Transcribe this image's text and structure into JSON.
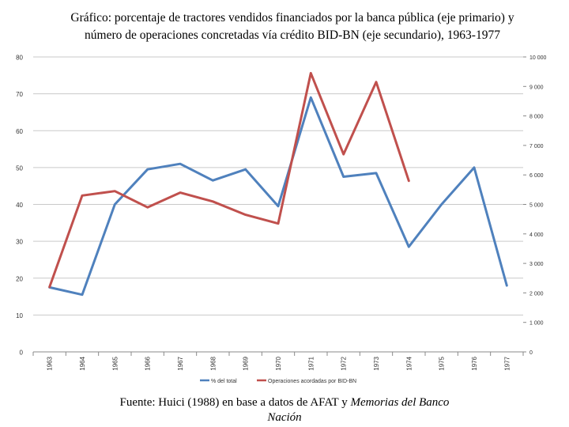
{
  "title_line1": "Gráfico: porcentaje de tractores vendidos financiados por la banca pública (eje primario) y",
  "title_line2": "número de operaciones concretadas vía crédito BID-BN (eje secundario), 1963-1977",
  "source": {
    "prefix": "Fuente: Huici (1988) en base a datos de AFAT y ",
    "italic_part1": "Memorias del Banco",
    "italic_part2": "Nación"
  },
  "chart_data": {
    "type": "line",
    "categories": [
      "1963",
      "1964",
      "1965",
      "1966",
      "1967",
      "1968",
      "1969",
      "1970",
      "1971",
      "1972",
      "1973",
      "1974",
      "1975",
      "1976",
      "1977"
    ],
    "y_left": {
      "min": 0,
      "max": 80,
      "ticks": [
        "0",
        "10",
        "20",
        "30",
        "40",
        "50",
        "60",
        "70",
        "80"
      ]
    },
    "y_right": {
      "min": 0,
      "max": 10000,
      "ticks": [
        "0",
        "1 000",
        "2 000",
        "3 000",
        "4 000",
        "5 000",
        "6 000",
        "7 000",
        "8 000",
        "9 000",
        "10 000"
      ]
    },
    "grid": true,
    "legend_position": "bottom",
    "series": [
      {
        "name": "% del total",
        "axis": "left",
        "color": "#4F81BD",
        "values": [
          17.5,
          15.5,
          40,
          49.5,
          51,
          46.5,
          49.5,
          39.5,
          69,
          47.5,
          48.5,
          28.5,
          40,
          50,
          18
        ]
      },
      {
        "name": "Operaciones acordadas por BID-BN",
        "axis": "right",
        "color": "#C0504D",
        "values": [
          2200,
          5300,
          5450,
          4900,
          5400,
          5100,
          4650,
          4350,
          9450,
          6700,
          9150,
          5800,
          null,
          null,
          null
        ]
      }
    ]
  }
}
